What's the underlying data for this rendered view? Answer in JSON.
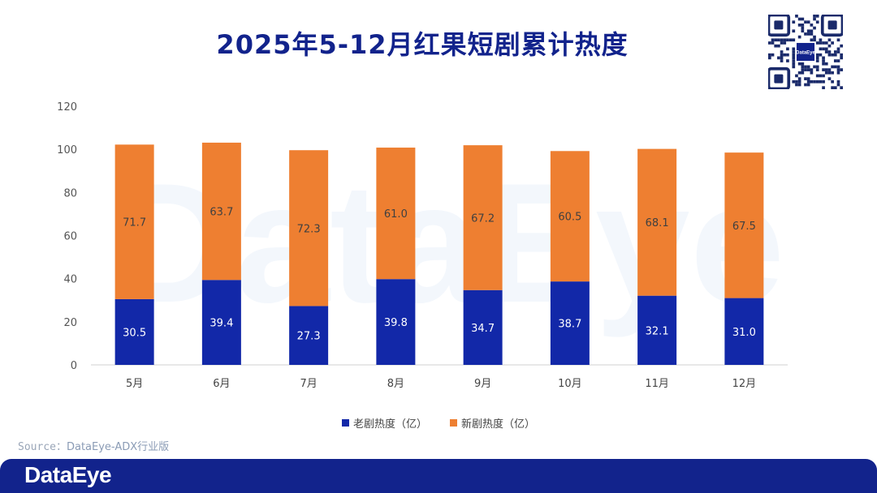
{
  "title": "2025年5-12月红果短剧累计热度",
  "source_label": "Source：",
  "source_text": "DataEye-ADX行业版",
  "brand": {
    "footer_logo": "DataEye",
    "qr_label": "DataEye",
    "watermark": "DataEye",
    "color": "#12238c"
  },
  "chart_data": {
    "type": "bar",
    "stacked": true,
    "categories": [
      "5月",
      "6月",
      "7月",
      "8月",
      "9月",
      "10月",
      "11月",
      "12月"
    ],
    "series": [
      {
        "name": "老剧热度（亿）",
        "color": "#1228a8",
        "values": [
          30.5,
          39.4,
          27.3,
          39.8,
          34.7,
          38.7,
          32.1,
          31.0
        ]
      },
      {
        "name": "新剧热度（亿）",
        "color": "#ee7f31",
        "values": [
          71.7,
          63.7,
          72.3,
          61.0,
          67.2,
          60.5,
          68.1,
          67.5
        ]
      }
    ],
    "ylim": [
      0,
      120
    ],
    "yticks": [
      "0",
      "20",
      "40",
      "60",
      "80",
      "100",
      "120"
    ],
    "legend_position": "bottom",
    "grid": false
  }
}
